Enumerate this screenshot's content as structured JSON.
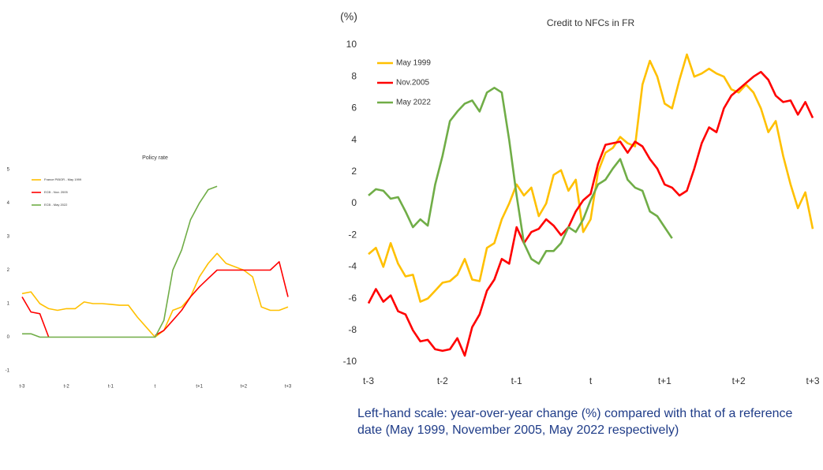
{
  "chart_data": [
    {
      "type": "line",
      "title": "Policy rate",
      "legend": "upper left",
      "x": [
        -3,
        -2.8,
        -2.6,
        -2.4,
        -2.2,
        -2,
        -1.8,
        -1.6,
        -1.4,
        -1.2,
        -1,
        -0.8,
        -0.6,
        -0.4,
        -0.2,
        0,
        0.2,
        0.4,
        0.6,
        0.8,
        1,
        1.2,
        1.4,
        1.6,
        1.8,
        2,
        2.2,
        2.4,
        2.6,
        2.8,
        3
      ],
      "xlim": [
        -3,
        3
      ],
      "xticks": [
        {
          "value": -3,
          "label": "t-3"
        },
        {
          "value": -2,
          "label": "t-2"
        },
        {
          "value": -1,
          "label": "t-1"
        },
        {
          "value": 0,
          "label": "t"
        },
        {
          "value": 1,
          "label": "t+1"
        },
        {
          "value": 2,
          "label": "t+2"
        },
        {
          "value": 3,
          "label": "t+3"
        }
      ],
      "ylim": [
        -1,
        5
      ],
      "yticks": [
        -1,
        0,
        1,
        2,
        3,
        4,
        5
      ],
      "series": [
        {
          "name": "France PIBOR - May 1999",
          "color": "#ffc000",
          "values": [
            1.3,
            1.35,
            1.0,
            0.85,
            0.8,
            0.85,
            0.85,
            1.05,
            1.0,
            1.0,
            0.98,
            0.95,
            0.95,
            0.6,
            0.3,
            0.0,
            0.2,
            0.8,
            0.9,
            1.2,
            1.8,
            2.2,
            2.5,
            2.2,
            2.1,
            2.0,
            1.8,
            0.9,
            0.8,
            0.8,
            0.9
          ]
        },
        {
          "name": "ECB - Nov. 2005",
          "color": "#ff0000",
          "values": [
            1.2,
            0.75,
            0.7,
            0.0,
            null,
            null,
            null,
            null,
            null,
            null,
            null,
            null,
            null,
            null,
            null,
            0.05,
            0.2,
            0.5,
            0.8,
            1.2,
            1.5,
            1.75,
            2.0,
            2.0,
            2.0,
            2.0,
            2.0,
            2.0,
            2.0,
            2.25,
            1.2
          ]
        },
        {
          "name": "ECB - May 2022",
          "color": "#70ad47",
          "values": [
            0.1,
            0.1,
            0.0,
            0.0,
            0.0,
            0.0,
            0.0,
            0.0,
            0.0,
            0.0,
            0.0,
            0.0,
            0.0,
            0.0,
            0.0,
            0.0,
            0.5,
            2.0,
            2.6,
            3.5,
            4.0,
            4.4,
            4.5,
            null,
            null,
            null,
            null,
            null,
            null,
            null,
            null
          ]
        }
      ]
    },
    {
      "type": "line",
      "title": "Credit to NFCs in FR",
      "y_label": "(%)",
      "legend": "upper left",
      "x": [
        -3,
        -2.9,
        -2.8,
        -2.7,
        -2.6,
        -2.5,
        -2.4,
        -2.3,
        -2.2,
        -2.1,
        -2,
        -1.9,
        -1.8,
        -1.7,
        -1.6,
        -1.5,
        -1.4,
        -1.3,
        -1.2,
        -1.1,
        -1,
        -0.9,
        -0.8,
        -0.7,
        -0.6,
        -0.5,
        -0.4,
        -0.3,
        -0.2,
        -0.1,
        0,
        0.1,
        0.2,
        0.3,
        0.4,
        0.5,
        0.6,
        0.7,
        0.8,
        0.9,
        1,
        1.1,
        1.2,
        1.3,
        1.4,
        1.5,
        1.6,
        1.7,
        1.8,
        1.9,
        2,
        2.1,
        2.2,
        2.3,
        2.4,
        2.5,
        2.6,
        2.7,
        2.8,
        2.9,
        3
      ],
      "xlim": [
        -3,
        3
      ],
      "xticks": [
        {
          "value": -3,
          "label": "t-3"
        },
        {
          "value": -2,
          "label": "t-2"
        },
        {
          "value": -1,
          "label": "t-1"
        },
        {
          "value": 0,
          "label": "t"
        },
        {
          "value": 1,
          "label": "t+1"
        },
        {
          "value": 2,
          "label": "t+2"
        },
        {
          "value": 3,
          "label": "t+3"
        }
      ],
      "ylim": [
        -10,
        10
      ],
      "yticks": [
        -10,
        -8,
        -6,
        -4,
        -2,
        0,
        2,
        4,
        6,
        8,
        10
      ],
      "series": [
        {
          "name": "May 1999",
          "color": "#ffc000",
          "values": [
            -3.2,
            -2.8,
            -4.0,
            -2.5,
            -3.8,
            -4.6,
            -4.5,
            -6.2,
            -6.0,
            -5.5,
            -5.0,
            -4.9,
            -4.5,
            -3.5,
            -4.8,
            -4.9,
            -2.8,
            -2.5,
            -1.0,
            0.0,
            1.2,
            0.5,
            1.0,
            -0.8,
            0.0,
            1.8,
            2.1,
            0.8,
            1.5,
            -1.8,
            -1.0,
            2.0,
            3.2,
            3.5,
            4.2,
            3.8,
            3.6,
            7.5,
            9.0,
            8.0,
            6.3,
            6.0,
            7.8,
            9.4,
            8.0,
            8.2,
            8.5,
            8.2,
            8.0,
            7.2,
            7.0,
            7.5,
            7.0,
            6.0,
            4.5,
            5.2,
            3.0,
            1.2,
            -0.3,
            0.7,
            -1.6
          ]
        },
        {
          "name": "Nov.2005",
          "color": "#ff0000",
          "values": [
            -6.3,
            -5.4,
            -6.2,
            -5.8,
            -6.8,
            -7.0,
            -8.0,
            -8.7,
            -8.6,
            -9.2,
            -9.3,
            -9.2,
            -8.5,
            -9.6,
            -7.8,
            -7.0,
            -5.5,
            -4.8,
            -3.5,
            -3.8,
            -1.5,
            -2.5,
            -1.8,
            -1.6,
            -1.0,
            -1.4,
            -2.0,
            -1.5,
            -0.5,
            0.2,
            0.6,
            2.5,
            3.7,
            3.8,
            3.9,
            3.2,
            3.9,
            3.6,
            2.8,
            2.2,
            1.2,
            1.0,
            0.5,
            0.8,
            2.2,
            3.8,
            4.8,
            4.5,
            6.0,
            6.8,
            7.2,
            7.6,
            8.0,
            8.3,
            7.8,
            6.8,
            6.4,
            6.5,
            5.6,
            6.4,
            5.4
          ]
        },
        {
          "name": "May 2022",
          "color": "#70ad47",
          "values": [
            0.5,
            0.9,
            0.8,
            0.3,
            0.4,
            -0.5,
            -1.5,
            -1.0,
            -1.4,
            1.2,
            3.0,
            5.2,
            5.8,
            6.3,
            6.5,
            5.8,
            7.0,
            7.3,
            7.0,
            4.0,
            0.5,
            -2.5,
            -3.5,
            -3.8,
            -3.0,
            -3.0,
            -2.5,
            -1.5,
            -1.8,
            -1.0,
            0.2,
            1.2,
            1.5,
            2.2,
            2.8,
            1.5,
            1.0,
            0.8,
            -0.5,
            -0.8,
            -1.5,
            -2.2,
            null,
            null,
            null,
            null,
            null,
            null,
            null,
            null,
            null,
            null,
            null,
            null,
            null,
            null,
            null,
            null,
            null,
            null,
            null
          ]
        }
      ]
    }
  ],
  "caption": "Left-hand scale: year-over-year change (%) compared with that of a reference date (May 1999, November 2005, May 2022 respectively)"
}
